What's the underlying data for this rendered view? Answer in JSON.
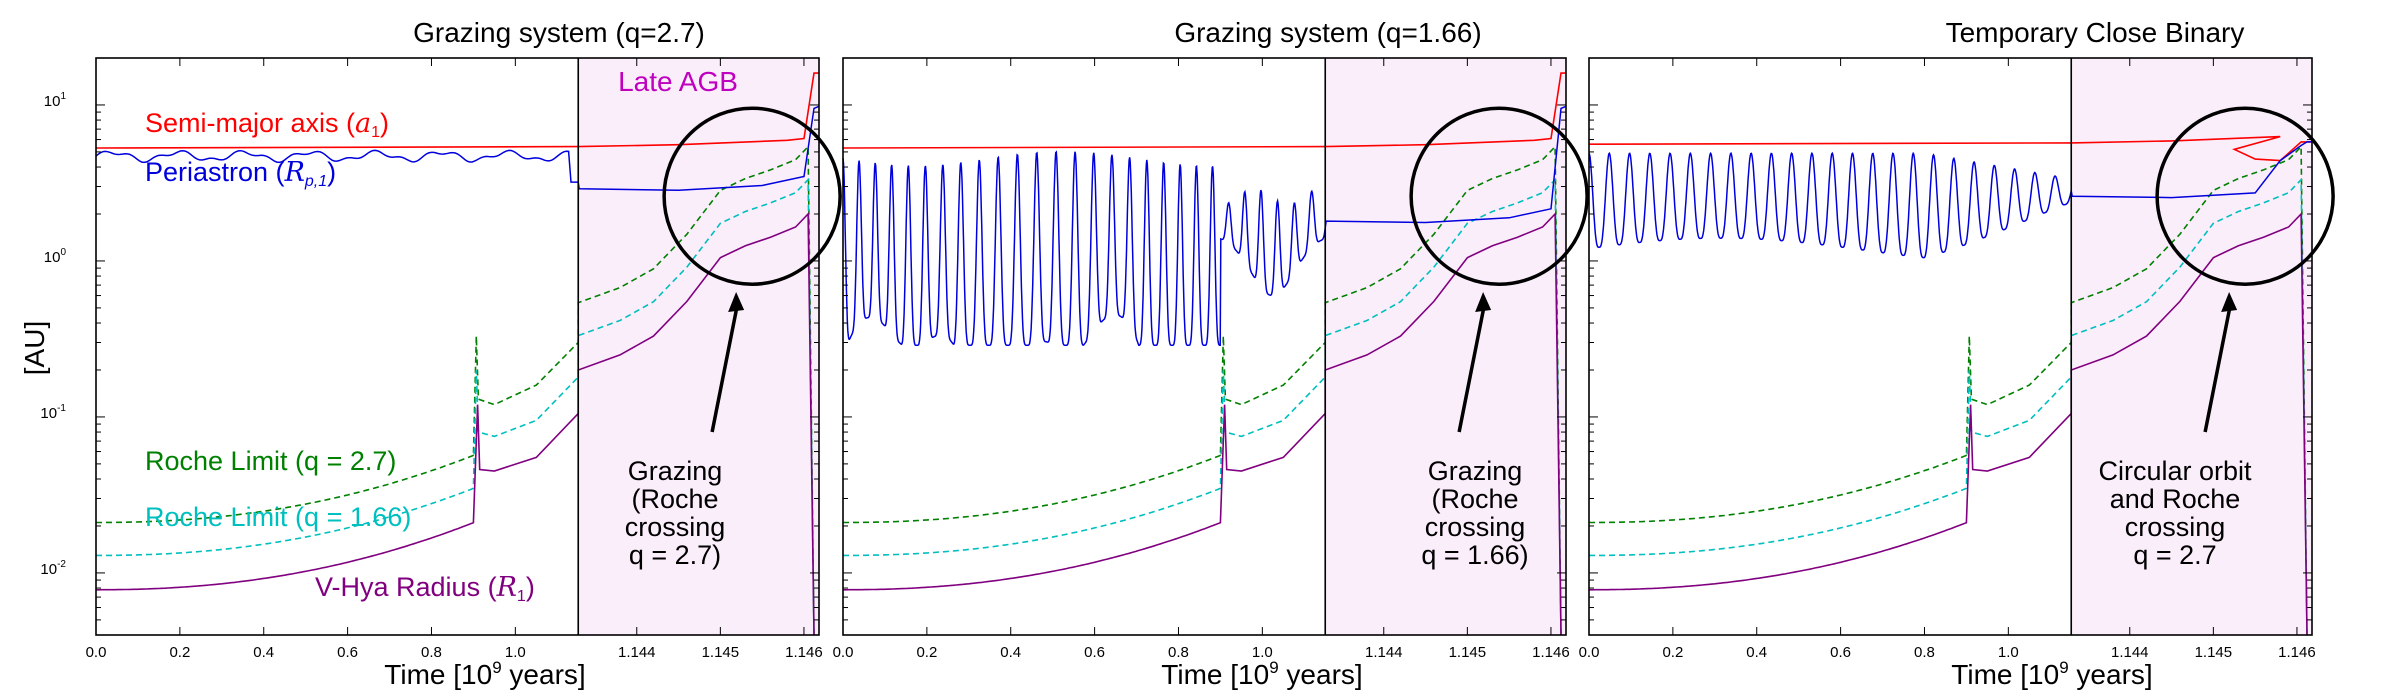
{
  "chart_data": [
    {
      "type": "line",
      "title": "Grazing system (q=2.7)",
      "xlabel_main": "Time [10",
      "xlabel_exp": "9",
      "xlabel_tail": "  years]",
      "ylabel": "[AU]",
      "yscale": "log",
      "ylim": [
        0.004,
        20
      ],
      "y_ticks": [
        {
          "base": "10",
          "exp": "1"
        },
        {
          "base": "10",
          "exp": "0"
        },
        {
          "base": "10",
          "exp": "-1"
        },
        {
          "base": "10",
          "exp": "-2"
        }
      ],
      "x_ticks_early": [
        "0.0",
        "0.2",
        "0.4",
        "0.6",
        "0.8",
        "1.0"
      ],
      "x_ticks_late": [
        "1.144",
        "1.145",
        "1.146"
      ],
      "shaded_label": "Late AGB",
      "legend": [
        {
          "text": "Semi-major axis (",
          "sym": "a",
          "sub": "1",
          "tail": ")",
          "color": "#ff0000"
        },
        {
          "text": "Periastron (",
          "sym": "R",
          "sub": "p,1",
          "tail": ")",
          "color": "#0000dd"
        },
        {
          "text": "Roche Limit (q = 2.7)",
          "color": "#008000"
        },
        {
          "text": "Roche Limit (q = 1.66)",
          "color": "#00bfbf"
        },
        {
          "text": "V-Hya Radius (",
          "sym": "R",
          "sub": "1",
          "tail": ")",
          "color": "#800080"
        }
      ],
      "annotation": [
        "Grazing",
        "(Roche",
        "crossing",
        "q = 2.7)"
      ],
      "periastron_mode": "flat",
      "semi_major_axis_early": 5.3,
      "semi_major_axis_final": 16,
      "periastron_late": 2.9
    },
    {
      "type": "line",
      "title": "Grazing system (q=1.66)",
      "xlabel_main": "Time [10",
      "xlabel_exp": "9",
      "xlabel_tail": "  years]",
      "yscale": "log",
      "ylim": [
        0.004,
        20
      ],
      "x_ticks_early": [
        "0.0",
        "0.2",
        "0.4",
        "0.6",
        "0.8",
        "1.0"
      ],
      "x_ticks_late": [
        "1.144",
        "1.145",
        "1.146"
      ],
      "annotation": [
        "Grazing",
        "(Roche",
        "crossing",
        "q = 1.66)"
      ],
      "periastron_mode": "oscillating",
      "semi_major_axis_early": 5.3,
      "semi_major_axis_final": 16,
      "periastron_late": 1.8
    },
    {
      "type": "line",
      "title": "Temporary Close Binary",
      "xlabel_main": "Time [10",
      "xlabel_exp": "9",
      "xlabel_tail": "  years]",
      "yscale": "log",
      "ylim": [
        0.004,
        20
      ],
      "x_ticks_early": [
        "0.0",
        "0.2",
        "0.4",
        "0.6",
        "0.8",
        "1.0"
      ],
      "x_ticks_late": [
        "1.144",
        "1.145",
        "1.146"
      ],
      "annotation": [
        "Circular orbit",
        "and Roche",
        "crossing",
        "q = 2.7"
      ],
      "periastron_mode": "regular",
      "semi_major_axis_early": 5.6,
      "semi_major_axis_final": 5.8,
      "periastron_late": 2.6
    }
  ],
  "colors": {
    "semi_major": "#ff0000",
    "periastron": "#0000dd",
    "roche_27": "#008000",
    "roche_166": "#00bfbf",
    "radius": "#800080",
    "shade": "#fbeefb"
  }
}
